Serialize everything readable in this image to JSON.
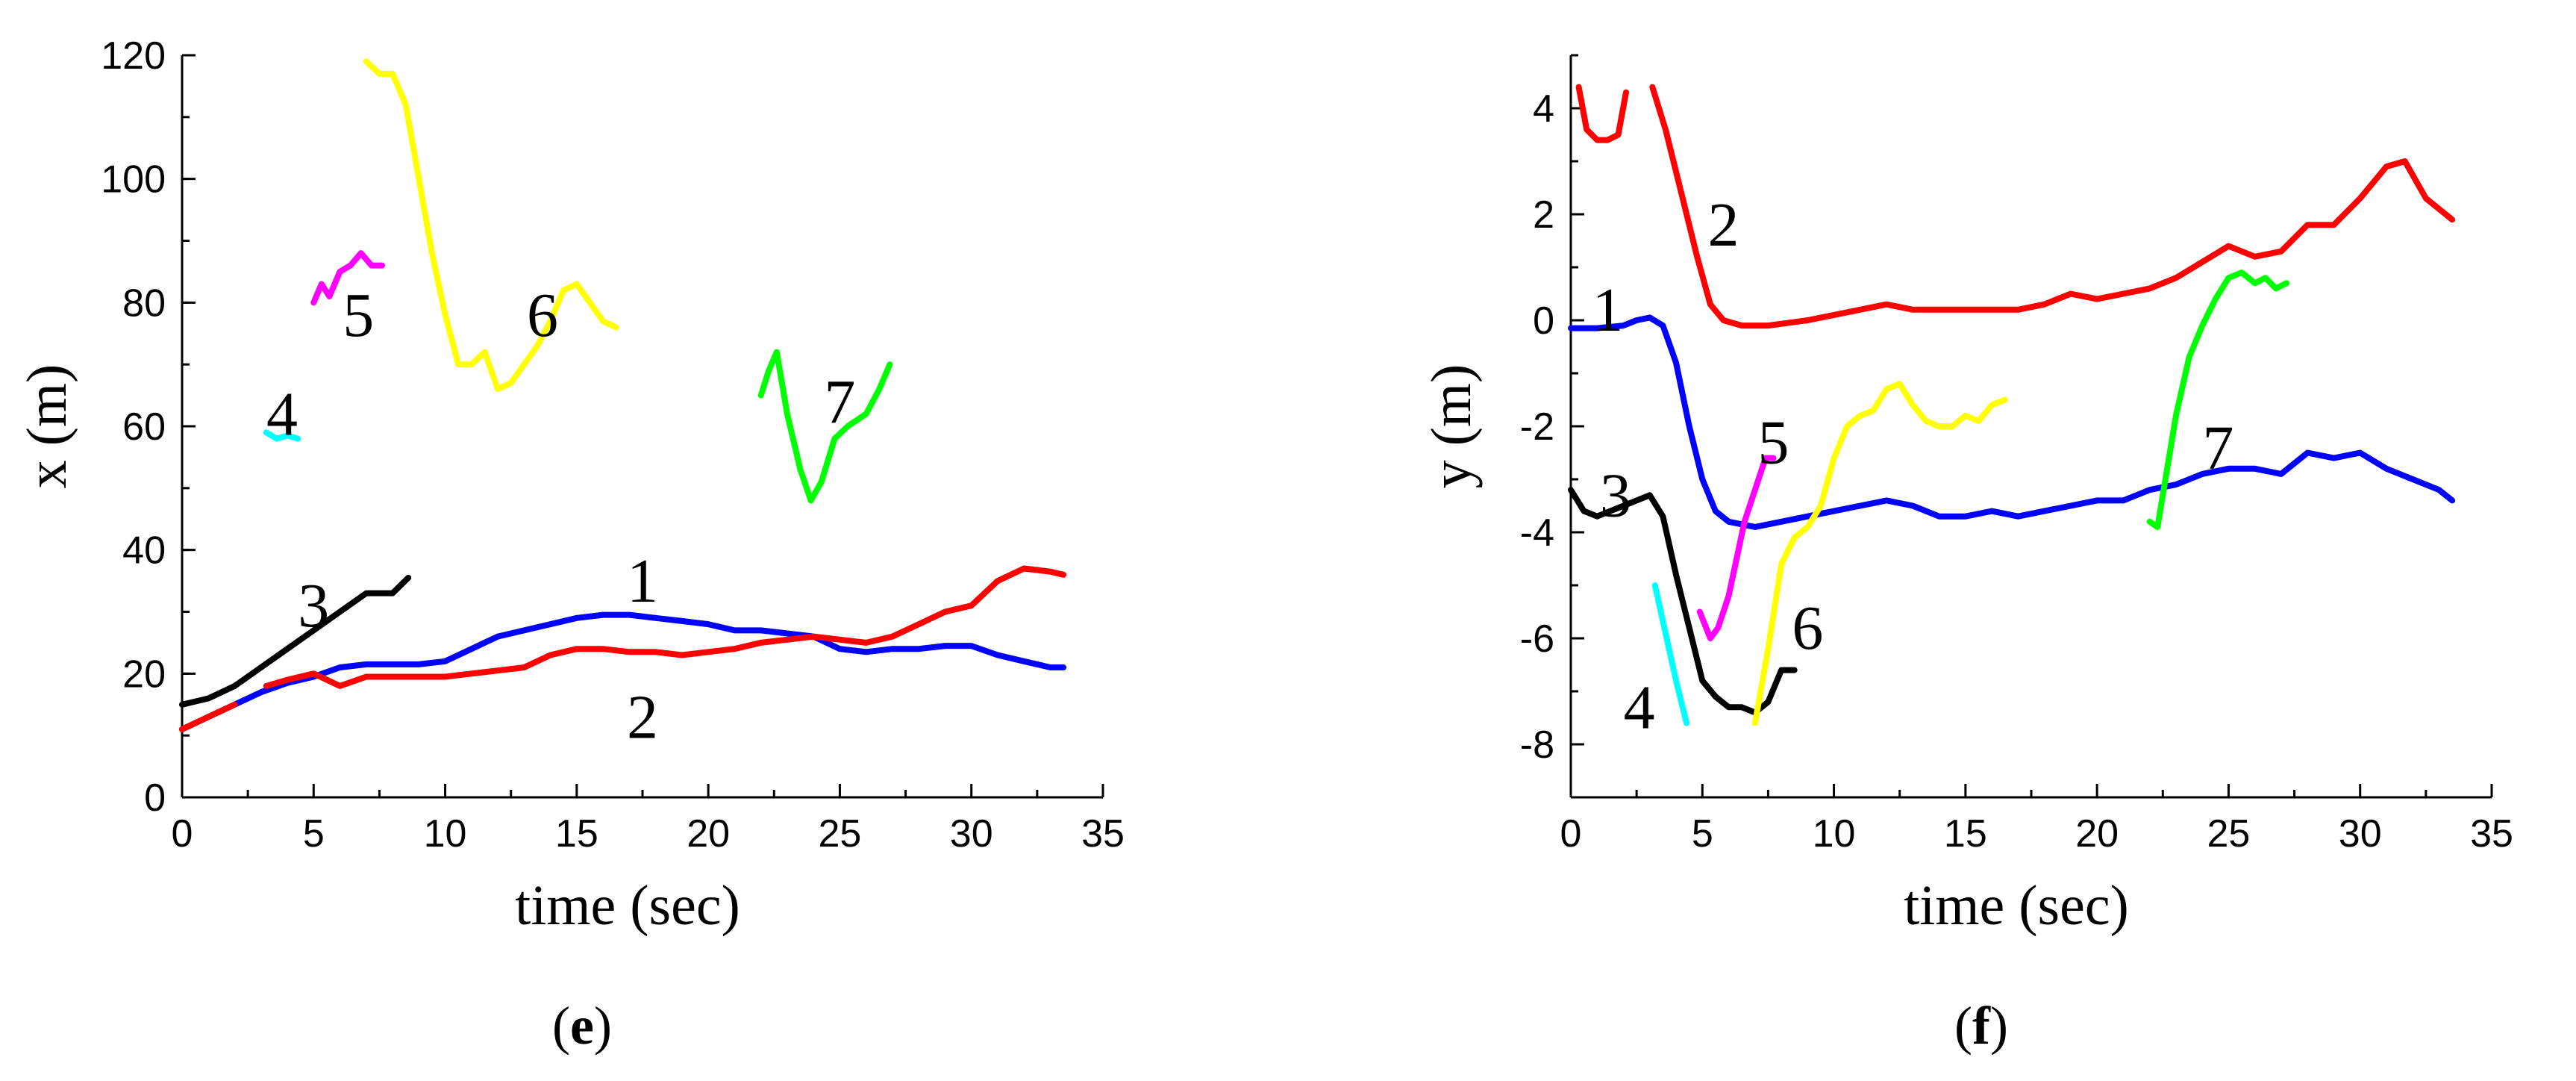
{
  "colors": {
    "1": "#0000ff",
    "2": "#ff0000",
    "3": "#000000",
    "4": "#00ffff",
    "5": "#ff00ff",
    "6": "#ffff00",
    "7": "#00ff00"
  },
  "chart_data": [
    {
      "type": "line",
      "panel_label": "e",
      "xlabel": "time (sec)",
      "ylabel": "x (m)",
      "xlim": [
        0,
        35
      ],
      "ylim": [
        0,
        120
      ],
      "xticks": [
        0,
        5,
        10,
        15,
        20,
        25,
        30,
        35
      ],
      "yticks": [
        0,
        20,
        40,
        60,
        80,
        100,
        120
      ],
      "grid": false,
      "series": [
        {
          "name": "1",
          "color": "#0000ff",
          "label_at": [
            17.5,
            35
          ],
          "x": [
            0,
            1,
            2,
            3,
            4,
            5,
            6,
            7,
            8,
            9,
            10,
            11,
            12,
            13,
            14,
            15,
            16,
            17,
            18,
            19,
            20,
            21,
            22,
            23,
            24,
            25,
            26,
            27,
            28,
            29,
            30,
            31,
            32,
            33,
            33.5
          ],
          "y": [
            11,
            13,
            15,
            17,
            18.5,
            19.5,
            21,
            21.5,
            21.5,
            21.5,
            22,
            24,
            26,
            27,
            28,
            29,
            29.5,
            29.5,
            29,
            28.5,
            28,
            27,
            27,
            26.5,
            26,
            24,
            23.5,
            24,
            24,
            24.5,
            24.5,
            23,
            22,
            21,
            21
          ]
        },
        {
          "name": "2",
          "color": "#ff0000",
          "label_at": [
            17.5,
            13
          ],
          "segments": [
            {
              "x": [
                0,
                1,
                2
              ],
              "y": [
                11,
                13,
                15
              ]
            },
            {
              "x": [
                3.2,
                4,
                5,
                6,
                7,
                8,
                9,
                10,
                11,
                12,
                13,
                14,
                15,
                16,
                17,
                18,
                19,
                20,
                21,
                22,
                23,
                24,
                25,
                26,
                27,
                28,
                29,
                30,
                31,
                32,
                33,
                33.5
              ],
              "y": [
                18,
                19,
                20,
                18,
                19.5,
                19.5,
                19.5,
                19.5,
                20,
                20.5,
                21,
                23,
                24,
                24,
                23.5,
                23.5,
                23,
                23.5,
                24,
                25,
                25.5,
                26,
                25.5,
                25,
                26,
                28,
                30,
                31,
                35,
                37,
                36.5,
                36
              ]
            }
          ]
        },
        {
          "name": "3",
          "color": "#000000",
          "label_at": [
            5,
            31
          ],
          "x": [
            0,
            1,
            2,
            3,
            4,
            5,
            6,
            7,
            8,
            8.6
          ],
          "y": [
            15,
            16,
            18,
            21,
            24,
            27,
            30,
            33,
            33,
            35.5
          ]
        },
        {
          "name": "4",
          "color": "#00ffff",
          "label_at": [
            3.8,
            62
          ],
          "x": [
            3.2,
            3.6,
            4.0,
            4.4
          ],
          "y": [
            59,
            58,
            58.5,
            58
          ]
        },
        {
          "name": "5",
          "color": "#ff00ff",
          "label_at": [
            6.7,
            78
          ],
          "x": [
            5,
            5.3,
            5.6,
            6,
            6.4,
            6.8,
            7.2,
            7.6
          ],
          "y": [
            80,
            83,
            81,
            85,
            86,
            88,
            86,
            86
          ]
        },
        {
          "name": "6",
          "color": "#ffff00",
          "label_at": [
            13.7,
            78
          ],
          "x": [
            7,
            7.5,
            8,
            8.5,
            9,
            9.5,
            10,
            10.5,
            11,
            11.5,
            12,
            12.5,
            13,
            13.5,
            14,
            14.5,
            15,
            15.5,
            16,
            16.5
          ],
          "y": [
            119,
            117,
            117,
            112,
            100,
            88,
            78,
            70,
            70,
            72,
            66,
            67,
            70,
            73,
            77,
            82,
            83,
            80,
            77,
            76
          ]
        },
        {
          "name": "7",
          "color": "#00ff00",
          "label_at": [
            25,
            64
          ],
          "x": [
            22,
            22.3,
            22.6,
            23,
            23.5,
            23.9,
            24.3,
            24.8,
            25.3,
            26,
            26.5,
            26.9
          ],
          "y": [
            65,
            69,
            72,
            62,
            53,
            48,
            51,
            58,
            60,
            62,
            66,
            70
          ]
        }
      ]
    },
    {
      "type": "line",
      "panel_label": "f",
      "xlabel": "time (sec)",
      "ylabel": "y (m)",
      "xlim": [
        0,
        35
      ],
      "ylim": [
        -9,
        5
      ],
      "xticks": [
        0,
        5,
        10,
        15,
        20,
        25,
        30,
        35
      ],
      "yticks": [
        -8,
        -6,
        -4,
        -2,
        0,
        2,
        4
      ],
      "grid": false,
      "series": [
        {
          "name": "1",
          "color": "#0000ff",
          "label_at": [
            1.4,
            0.2
          ],
          "x": [
            0,
            1,
            2,
            2.5,
            3,
            3.5,
            4,
            4.5,
            5,
            5.5,
            6,
            7,
            8,
            9,
            10,
            11,
            12,
            13,
            14,
            15,
            16,
            17,
            18,
            19,
            20,
            21,
            22,
            23,
            24,
            25,
            26,
            27,
            28,
            29,
            30,
            31,
            32,
            33,
            33.5
          ],
          "y": [
            -0.15,
            -0.15,
            -0.1,
            0,
            0.05,
            -0.1,
            -0.8,
            -2,
            -3,
            -3.6,
            -3.8,
            -3.9,
            -3.8,
            -3.7,
            -3.6,
            -3.5,
            -3.4,
            -3.5,
            -3.7,
            -3.7,
            -3.6,
            -3.7,
            -3.6,
            -3.5,
            -3.4,
            -3.4,
            -3.2,
            -3.1,
            -2.9,
            -2.8,
            -2.8,
            -2.9,
            -2.5,
            -2.6,
            -2.5,
            -2.8,
            -3,
            -3.2,
            -3.4
          ]
        },
        {
          "name": "2",
          "color": "#ff0000",
          "label_at": [
            5.8,
            1.8
          ],
          "segments": [
            {
              "x": [
                0.3,
                0.6,
                1,
                1.4,
                1.8,
                2.1
              ],
              "y": [
                4.4,
                3.6,
                3.4,
                3.4,
                3.5,
                4.3
              ]
            },
            {
              "x": [
                3.1,
                3.6,
                4.2,
                4.8,
                5.3,
                5.8,
                6.5,
                7.5,
                9,
                10,
                11,
                12,
                13,
                14,
                15,
                16,
                17,
                18,
                19,
                20,
                21,
                22,
                23,
                24,
                25,
                26,
                27,
                28,
                29,
                30,
                31,
                31.7,
                32.5,
                33.5
              ],
              "y": [
                4.4,
                3.6,
                2.4,
                1.2,
                0.3,
                0,
                -0.1,
                -0.1,
                0,
                0.1,
                0.2,
                0.3,
                0.2,
                0.2,
                0.2,
                0.2,
                0.2,
                0.3,
                0.5,
                0.4,
                0.5,
                0.6,
                0.8,
                1.1,
                1.4,
                1.2,
                1.3,
                1.8,
                1.8,
                2.3,
                2.9,
                3.0,
                2.3,
                1.9
              ]
            }
          ]
        },
        {
          "name": "3",
          "color": "#000000",
          "label_at": [
            1.7,
            -3.3
          ],
          "x": [
            0,
            0.5,
            1,
            1.5,
            2,
            2.5,
            3,
            3.5,
            4,
            4.5,
            5,
            5.5,
            6,
            6.5,
            7,
            7.5,
            8,
            8.5
          ],
          "y": [
            -3.2,
            -3.6,
            -3.7,
            -3.6,
            -3.5,
            -3.4,
            -3.3,
            -3.7,
            -4.8,
            -5.8,
            -6.8,
            -7.1,
            -7.3,
            -7.3,
            -7.4,
            -7.2,
            -6.6,
            -6.6
          ]
        },
        {
          "name": "4",
          "color": "#00ffff",
          "label_at": [
            2.6,
            -7.3
          ],
          "x": [
            3.2,
            3.6,
            4,
            4.4
          ],
          "y": [
            -5,
            -5.9,
            -6.8,
            -7.6
          ]
        },
        {
          "name": "5",
          "color": "#ff00ff",
          "label_at": [
            7.7,
            -2.3
          ],
          "x": [
            4.9,
            5.3,
            5.6,
            6,
            6.3,
            6.6,
            7,
            7.4,
            7.7
          ],
          "y": [
            -5.5,
            -6,
            -5.8,
            -5.2,
            -4.5,
            -3.8,
            -3.2,
            -2.6,
            -2.6
          ]
        },
        {
          "name": "6",
          "color": "#ffff00",
          "label_at": [
            9,
            -5.8
          ],
          "x": [
            7,
            7.5,
            8,
            8.5,
            9,
            9.5,
            10,
            10.5,
            11,
            11.5,
            12,
            12.5,
            13,
            13.5,
            14,
            14.5,
            15,
            15.5,
            16,
            16.5
          ],
          "y": [
            -7.6,
            -6.2,
            -4.6,
            -4.1,
            -3.9,
            -3.5,
            -2.6,
            -2,
            -1.8,
            -1.7,
            -1.3,
            -1.2,
            -1.6,
            -1.9,
            -2,
            -2,
            -1.8,
            -1.9,
            -1.6,
            -1.5
          ]
        },
        {
          "name": "7",
          "color": "#00ff00",
          "label_at": [
            24.6,
            -2.4
          ],
          "x": [
            22,
            22.3,
            22.6,
            23,
            23.5,
            24,
            24.5,
            25,
            25.5,
            26,
            26.4,
            26.8,
            27.2
          ],
          "y": [
            -3.8,
            -3.9,
            -3,
            -1.8,
            -0.7,
            -0.1,
            0.4,
            0.8,
            0.9,
            0.7,
            0.8,
            0.6,
            0.7
          ]
        }
      ]
    }
  ]
}
